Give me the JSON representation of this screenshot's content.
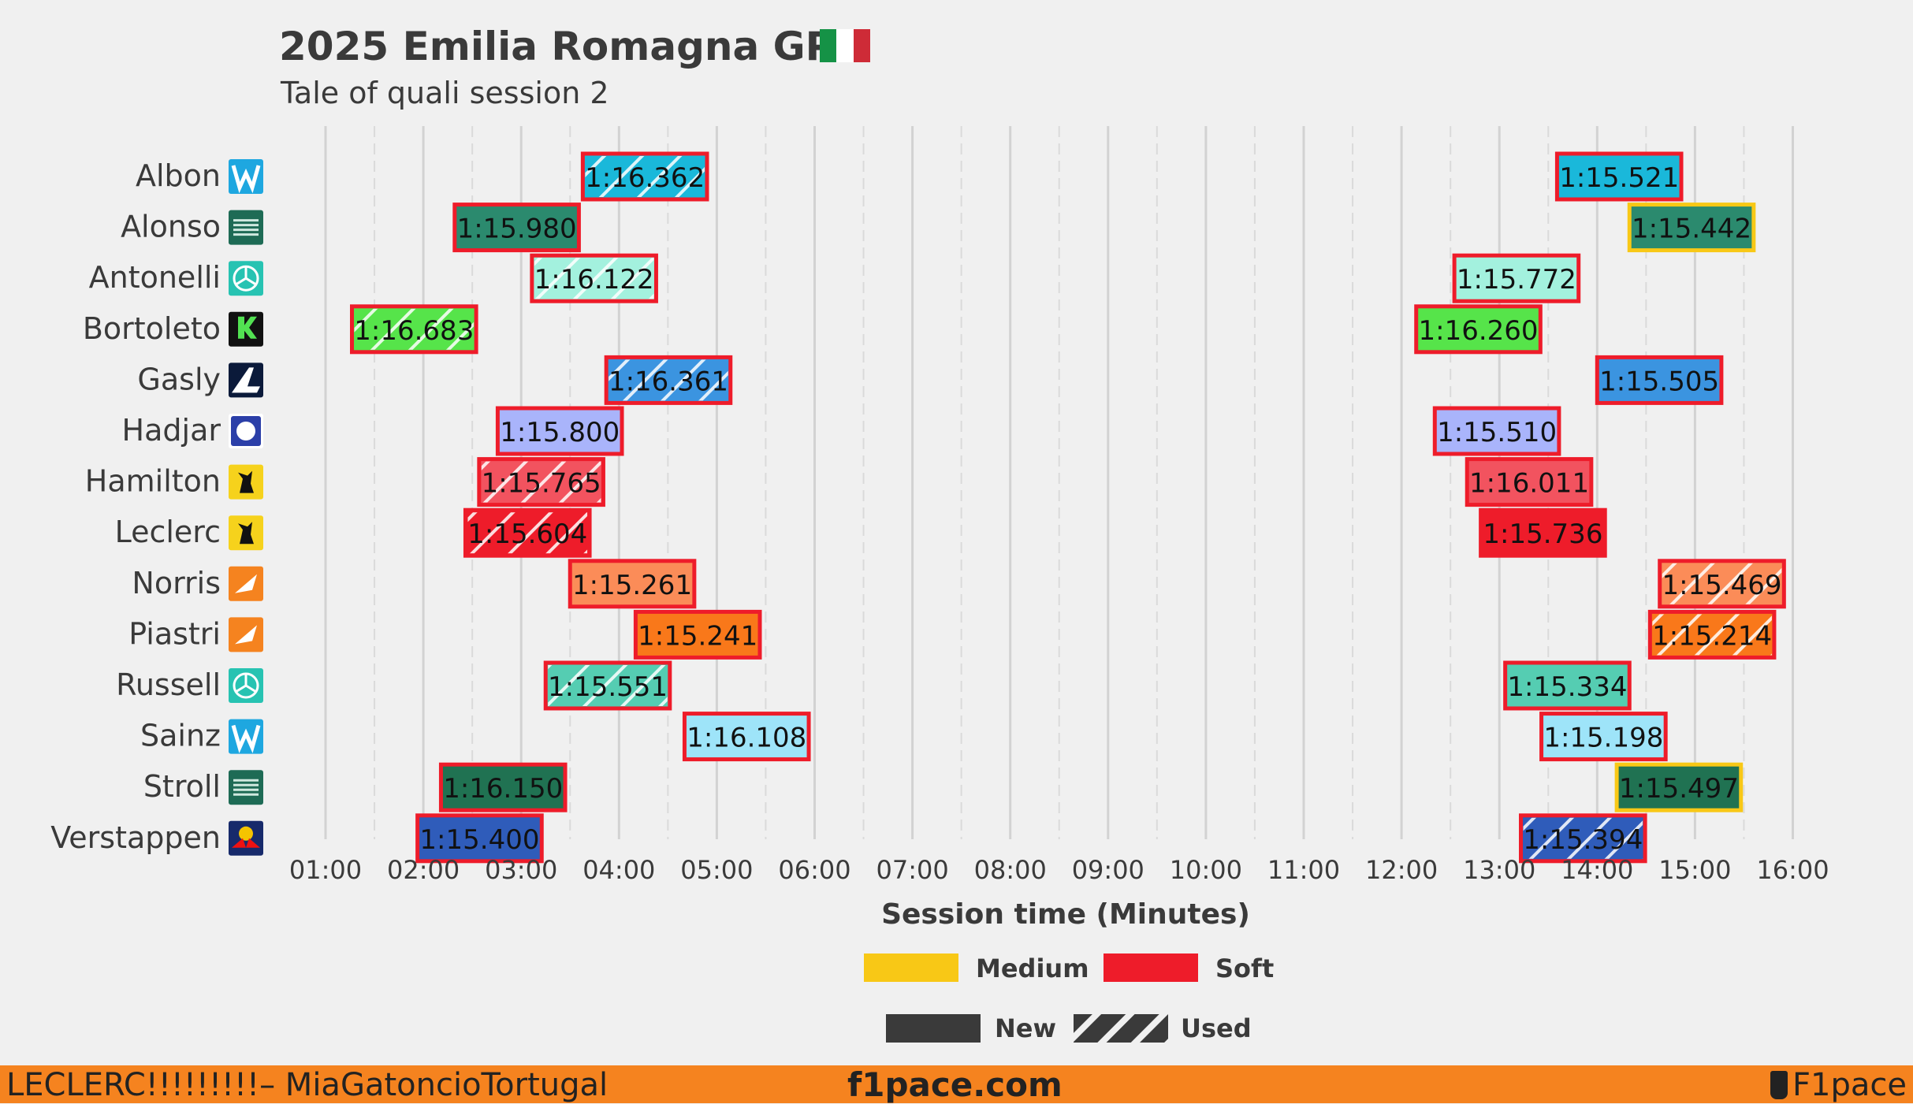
{
  "header": {
    "title": "2025 Emilia Romagna GP",
    "subtitle": "Tale of quali session 2",
    "flag_colors": [
      "#159246",
      "#ffffff",
      "#ce2b37"
    ]
  },
  "footer": {
    "left": "LECLERC!!!!!!!!!– MiaGatoncioTortugal",
    "center": "f1pace.com",
    "right": "F1pace",
    "background": "#f5831f"
  },
  "chart_data": {
    "type": "bar",
    "title": "2025 Emilia Romagna GP",
    "subtitle": "Tale of quali session 2",
    "xlabel": "Session time (Minutes)",
    "xlim": [
      0.5,
      16.6
    ],
    "xticks": [
      "01:00",
      "02:00",
      "03:00",
      "04:00",
      "05:00",
      "06:00",
      "07:00",
      "08:00",
      "09:00",
      "10:00",
      "11:00",
      "12:00",
      "13:00",
      "14:00",
      "15:00",
      "16:00"
    ],
    "grid": true,
    "legend": {
      "placement": "bottom",
      "compound": [
        {
          "name": "Medium",
          "color": "#f8c816"
        },
        {
          "name": "Soft",
          "color": "#ee1c2a"
        }
      ],
      "tyre_state": [
        {
          "name": "New"
        },
        {
          "name": "Used"
        }
      ]
    },
    "drivers": [
      {
        "name": "Albon",
        "team_icon": "williams-icon",
        "laps": [
          {
            "start": 3.63,
            "time": "1:16.362",
            "color": "#1ab8da",
            "compound": "Soft",
            "used": true
          },
          {
            "start": 13.59,
            "time": "1:15.521",
            "color": "#1ab8da",
            "compound": "Soft",
            "used": false
          }
        ]
      },
      {
        "name": "Alonso",
        "team_icon": "aston-martin-icon",
        "laps": [
          {
            "start": 2.32,
            "time": "1:15.980",
            "color": "#2b8a6e",
            "compound": "Soft",
            "used": false
          },
          {
            "start": 14.33,
            "time": "1:15.442",
            "color": "#2b8a6e",
            "compound": "Medium",
            "used": false
          }
        ]
      },
      {
        "name": "Antonelli",
        "team_icon": "mercedes-icon",
        "laps": [
          {
            "start": 3.11,
            "time": "1:16.122",
            "color": "#a3f1de",
            "compound": "Soft",
            "used": true
          },
          {
            "start": 12.54,
            "time": "1:15.772",
            "color": "#a3f1de",
            "compound": "Soft",
            "used": false
          }
        ]
      },
      {
        "name": "Bortoleto",
        "team_icon": "sauber-icon",
        "laps": [
          {
            "start": 1.27,
            "time": "1:16.683",
            "color": "#56e44a",
            "compound": "Soft",
            "used": true
          },
          {
            "start": 12.15,
            "time": "1:16.260",
            "color": "#56e44a",
            "compound": "Soft",
            "used": false
          }
        ]
      },
      {
        "name": "Gasly",
        "team_icon": "alpine-icon",
        "laps": [
          {
            "start": 3.87,
            "time": "1:16.361",
            "color": "#3b94e0",
            "compound": "Soft",
            "used": true
          },
          {
            "start": 14.0,
            "time": "1:15.505",
            "color": "#3b94e0",
            "compound": "Soft",
            "used": false
          }
        ]
      },
      {
        "name": "Hadjar",
        "team_icon": "racing-bulls-icon",
        "laps": [
          {
            "start": 2.76,
            "time": "1:15.800",
            "color": "#a9b4fb",
            "compound": "Soft",
            "used": false
          },
          {
            "start": 12.34,
            "time": "1:15.510",
            "color": "#a9b4fb",
            "compound": "Soft",
            "used": false
          }
        ]
      },
      {
        "name": "Hamilton",
        "team_icon": "ferrari-icon",
        "laps": [
          {
            "start": 2.57,
            "time": "1:15.765",
            "color": "#f2535f",
            "compound": "Soft",
            "used": true
          },
          {
            "start": 12.67,
            "time": "1:16.011",
            "color": "#f2535f",
            "compound": "Soft",
            "used": false
          }
        ]
      },
      {
        "name": "Leclerc",
        "team_icon": "ferrari-icon",
        "laps": [
          {
            "start": 2.43,
            "time": "1:15.604",
            "color": "#ee1c2a",
            "compound": "Soft",
            "used": true
          },
          {
            "start": 12.81,
            "time": "1:15.736",
            "color": "#ee1c2a",
            "compound": "Soft",
            "used": false
          }
        ]
      },
      {
        "name": "Norris",
        "team_icon": "mclaren-icon",
        "laps": [
          {
            "start": 3.5,
            "time": "1:15.261",
            "color": "#fb8c58",
            "compound": "Soft",
            "used": false
          },
          {
            "start": 14.64,
            "time": "1:15.469",
            "color": "#fb8c58",
            "compound": "Soft",
            "used": true
          }
        ]
      },
      {
        "name": "Piastri",
        "team_icon": "mclaren-icon",
        "laps": [
          {
            "start": 4.17,
            "time": "1:15.241",
            "color": "#f9781a",
            "compound": "Soft",
            "used": false
          },
          {
            "start": 14.54,
            "time": "1:15.214",
            "color": "#f9781a",
            "compound": "Soft",
            "used": true
          }
        ]
      },
      {
        "name": "Russell",
        "team_icon": "mercedes-icon",
        "laps": [
          {
            "start": 3.25,
            "time": "1:15.551",
            "color": "#55cdb2",
            "compound": "Soft",
            "used": true
          },
          {
            "start": 13.06,
            "time": "1:15.334",
            "color": "#55cdb2",
            "compound": "Soft",
            "used": false
          }
        ]
      },
      {
        "name": "Sainz",
        "team_icon": "williams-icon",
        "laps": [
          {
            "start": 4.67,
            "time": "1:16.108",
            "color": "#9ee4f9",
            "compound": "Soft",
            "used": false
          },
          {
            "start": 13.43,
            "time": "1:15.198",
            "color": "#9ee4f9",
            "compound": "Soft",
            "used": false
          }
        ]
      },
      {
        "name": "Stroll",
        "team_icon": "aston-martin-icon",
        "laps": [
          {
            "start": 2.18,
            "time": "1:16.150",
            "color": "#207252",
            "compound": "Soft",
            "used": false
          },
          {
            "start": 14.2,
            "time": "1:15.497",
            "color": "#207252",
            "compound": "Medium",
            "used": false
          }
        ]
      },
      {
        "name": "Verstappen",
        "team_icon": "red-bull-icon",
        "laps": [
          {
            "start": 1.94,
            "time": "1:15.400",
            "color": "#2f5cba",
            "compound": "Soft",
            "used": false
          },
          {
            "start": 13.22,
            "time": "1:15.394",
            "color": "#2f5cba",
            "compound": "Soft",
            "used": true
          }
        ]
      }
    ]
  }
}
